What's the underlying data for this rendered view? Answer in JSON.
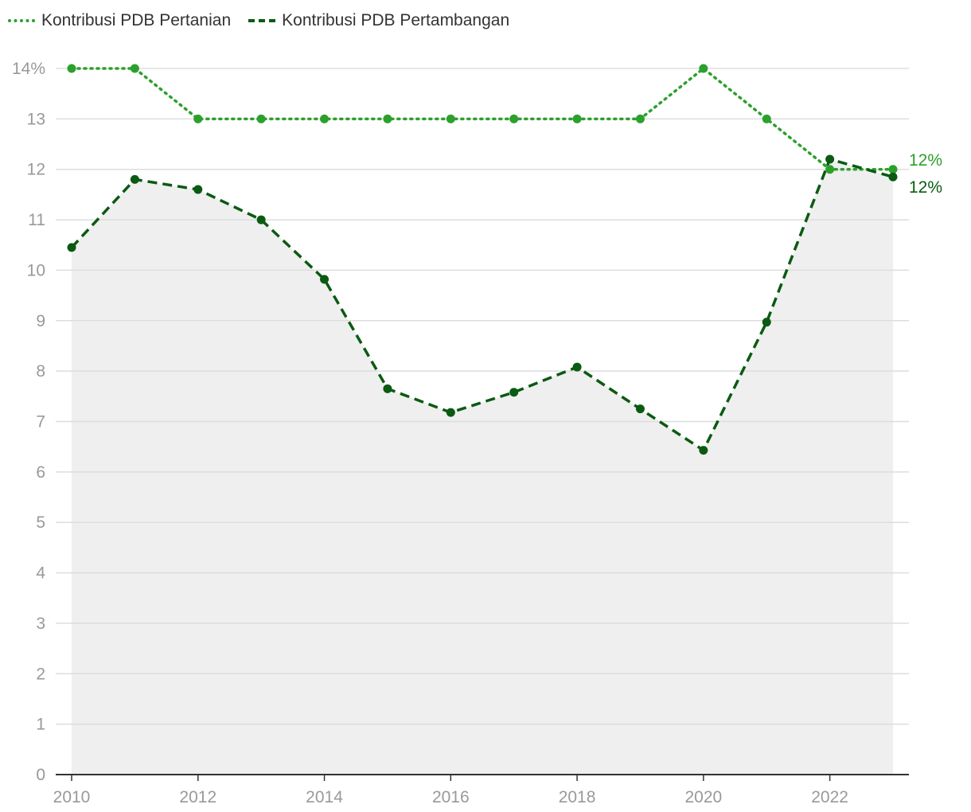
{
  "chart_data": {
    "type": "line",
    "x": [
      2010,
      2011,
      2012,
      2013,
      2014,
      2015,
      2016,
      2017,
      2018,
      2019,
      2020,
      2021,
      2022,
      2023
    ],
    "x_ticks": [
      "2010",
      "2012",
      "2014",
      "2016",
      "2018",
      "2020",
      "2022"
    ],
    "x_tick_values": [
      2010,
      2012,
      2014,
      2016,
      2018,
      2020,
      2022
    ],
    "y_ticks": [
      "0",
      "1",
      "2",
      "3",
      "4",
      "5",
      "6",
      "7",
      "8",
      "9",
      "10",
      "11",
      "12",
      "13",
      "14%"
    ],
    "y_tick_values": [
      0,
      1,
      2,
      3,
      4,
      5,
      6,
      7,
      8,
      9,
      10,
      11,
      12,
      13,
      14
    ],
    "ylim": [
      0,
      14
    ],
    "xlim": [
      2010,
      2023
    ],
    "grid": true,
    "legend_position": "top-left",
    "series": [
      {
        "name": "Kontribusi PDB Pertanian",
        "style": "dotted",
        "color": "#2ca02c",
        "values": [
          14,
          14,
          13,
          13,
          13,
          13,
          13,
          13,
          13,
          13,
          14,
          13,
          12,
          12
        ],
        "end_label": "12%"
      },
      {
        "name": "Kontribusi PDB Pertambangan",
        "style": "dashed",
        "color": "#0b5a12",
        "values": [
          10.45,
          11.8,
          11.6,
          11.0,
          9.82,
          7.65,
          7.18,
          7.58,
          8.08,
          7.25,
          6.43,
          8.97,
          12.2,
          11.85
        ],
        "end_label": "12%",
        "area_fill": "#efefef"
      }
    ]
  }
}
